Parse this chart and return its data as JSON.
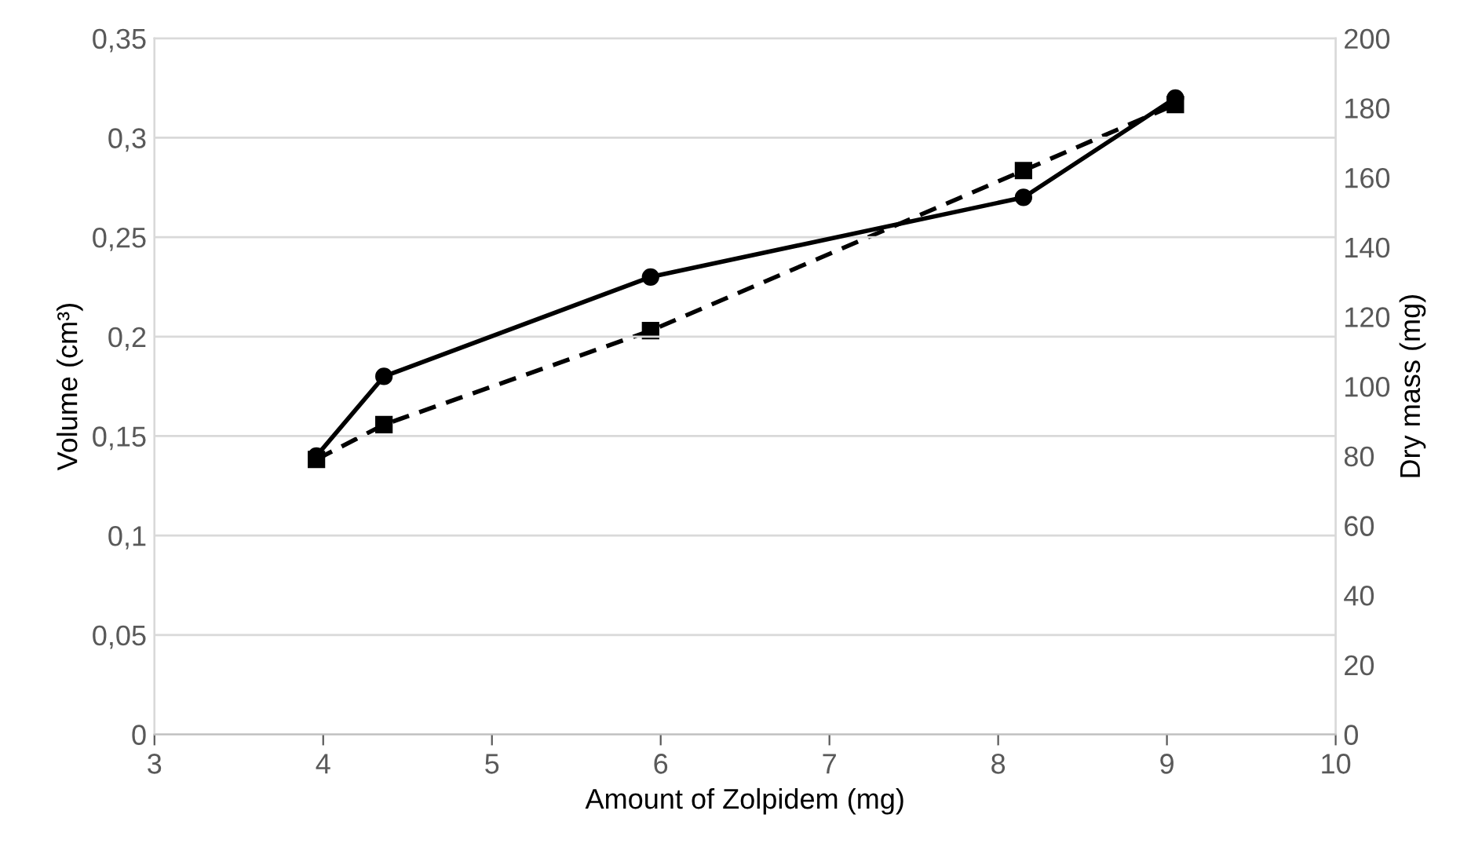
{
  "chart_data": {
    "type": "line",
    "xlabel": "Amount of Zolpidem (mg)",
    "ylabel": "Volume (cm³)",
    "y2label": "Dry mass (mg)",
    "x": [
      3.96,
      4.36,
      5.94,
      8.15,
      9.05
    ],
    "series": [
      {
        "color": "#000000",
        "values": [
          0.14,
          0.18,
          0.23,
          0.27,
          0.32
        ],
        "marker": "circle",
        "line_style": "solid"
      },
      {
        "color": "#000000",
        "values": [
          79,
          89,
          116,
          162,
          181
        ],
        "marker": "square",
        "line_style": "dashed",
        "axis": "y2"
      }
    ],
    "xlim": [
      3,
      10
    ],
    "xticks": [
      3,
      4,
      5,
      6,
      7,
      8,
      9,
      10
    ],
    "ylim": [
      0,
      0.35
    ],
    "yticks": [
      {
        "value": 0,
        "label": "0"
      },
      {
        "value": 0.05,
        "label": "0,05"
      },
      {
        "value": 0.1,
        "label": "0,1"
      },
      {
        "value": 0.15,
        "label": "0,15"
      },
      {
        "value": 0.2,
        "label": "0,2"
      },
      {
        "value": 0.25,
        "label": "0,25"
      },
      {
        "value": 0.3,
        "label": "0,3"
      },
      {
        "value": 0.35,
        "label": "0,35"
      }
    ],
    "y2lim": [
      0,
      200
    ],
    "y2ticks": [
      0,
      20,
      40,
      60,
      80,
      100,
      120,
      140,
      160,
      180,
      200
    ],
    "grid": "y"
  }
}
